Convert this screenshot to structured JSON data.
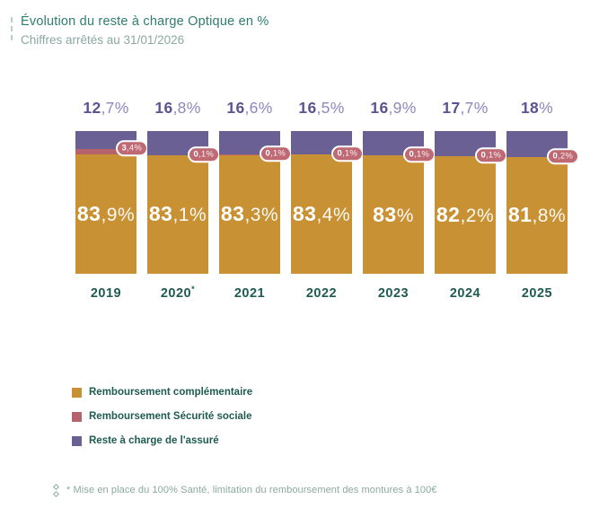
{
  "header": {
    "title": "Évolution du reste à charge Optique en %",
    "subtitle": "Chiffres arrêtés au 31/01/2026"
  },
  "chart_data": {
    "type": "bar",
    "stacked": true,
    "title": "Évolution du reste à charge Optique en %",
    "subtitle": "Chiffres arrêtés au 31/01/2026",
    "unit": "%",
    "categories": [
      "2019",
      "2020*",
      "2021",
      "2022",
      "2023",
      "2024",
      "2025"
    ],
    "series": [
      {
        "name": "Remboursement complémentaire",
        "color": "#C89134",
        "values": [
          83.9,
          83.1,
          83.3,
          83.4,
          83,
          82.2,
          81.8
        ]
      },
      {
        "name": "Remboursement Sécurité sociale",
        "color": "#B5646E",
        "values": [
          3.4,
          0.1,
          0.1,
          0.1,
          0.1,
          0.1,
          0.2
        ]
      },
      {
        "name": "Reste à charge de l'assuré",
        "color": "#6A6094",
        "values": [
          12.7,
          16.8,
          16.6,
          16.5,
          16.9,
          17.7,
          18
        ]
      }
    ],
    "ylim": [
      0,
      100
    ],
    "grid": false,
    "legend_position": "bottom-left"
  },
  "columns": [
    {
      "year": "2019",
      "year_mark": "",
      "top": {
        "strong": "12",
        "light": ",7%"
      },
      "badge": {
        "strong": "3",
        "light": ",4%"
      },
      "main": {
        "strong": "83",
        "light": ",9%"
      },
      "heights": {
        "purple": 12.7,
        "rose": 3.4,
        "gold": 83.9
      }
    },
    {
      "year": "2020",
      "year_mark": "*",
      "top": {
        "strong": "16",
        "light": ",8%"
      },
      "badge": {
        "strong": "0",
        "light": ",1%"
      },
      "main": {
        "strong": "83",
        "light": ",1%"
      },
      "heights": {
        "purple": 16.8,
        "rose": 0.1,
        "gold": 83.1
      }
    },
    {
      "year": "2021",
      "year_mark": "",
      "top": {
        "strong": "16",
        "light": ",6%"
      },
      "badge": {
        "strong": "0",
        "light": ",1%"
      },
      "main": {
        "strong": "83",
        "light": ",3%"
      },
      "heights": {
        "purple": 16.6,
        "rose": 0.1,
        "gold": 83.3
      }
    },
    {
      "year": "2022",
      "year_mark": "",
      "top": {
        "strong": "16",
        "light": ",5%"
      },
      "badge": {
        "strong": "0",
        "light": ",1%"
      },
      "main": {
        "strong": "83",
        "light": ",4%"
      },
      "heights": {
        "purple": 16.5,
        "rose": 0.1,
        "gold": 83.4
      }
    },
    {
      "year": "2023",
      "year_mark": "",
      "top": {
        "strong": "16",
        "light": ",9%"
      },
      "badge": {
        "strong": "0",
        "light": ",1%"
      },
      "main": {
        "strong": "83",
        "light": "%"
      },
      "heights": {
        "purple": 16.9,
        "rose": 0.1,
        "gold": 83
      }
    },
    {
      "year": "2024",
      "year_mark": "",
      "top": {
        "strong": "17",
        "light": ",7%"
      },
      "badge": {
        "strong": "0",
        "light": ",1%"
      },
      "main": {
        "strong": "82",
        "light": ",2%"
      },
      "heights": {
        "purple": 17.7,
        "rose": 0.1,
        "gold": 82.2
      }
    },
    {
      "year": "2025",
      "year_mark": "",
      "top": {
        "strong": "18",
        "light": "%"
      },
      "badge": {
        "strong": "0",
        "light": ",2%"
      },
      "main": {
        "strong": "81",
        "light": ",8%"
      },
      "heights": {
        "purple": 18,
        "rose": 0.2,
        "gold": 81.8
      }
    }
  ],
  "legend": {
    "items": [
      {
        "label": "Remboursement complémentaire",
        "color": "#C89134"
      },
      {
        "label": "Remboursement Sécurité sociale",
        "color": "#B5646E"
      },
      {
        "label": "Reste à charge de l'assuré",
        "color": "#6A6094"
      }
    ]
  },
  "footnote": {
    "text": "* Mise en place du 100% Santé, limitation du remboursement des montures à 100€"
  }
}
